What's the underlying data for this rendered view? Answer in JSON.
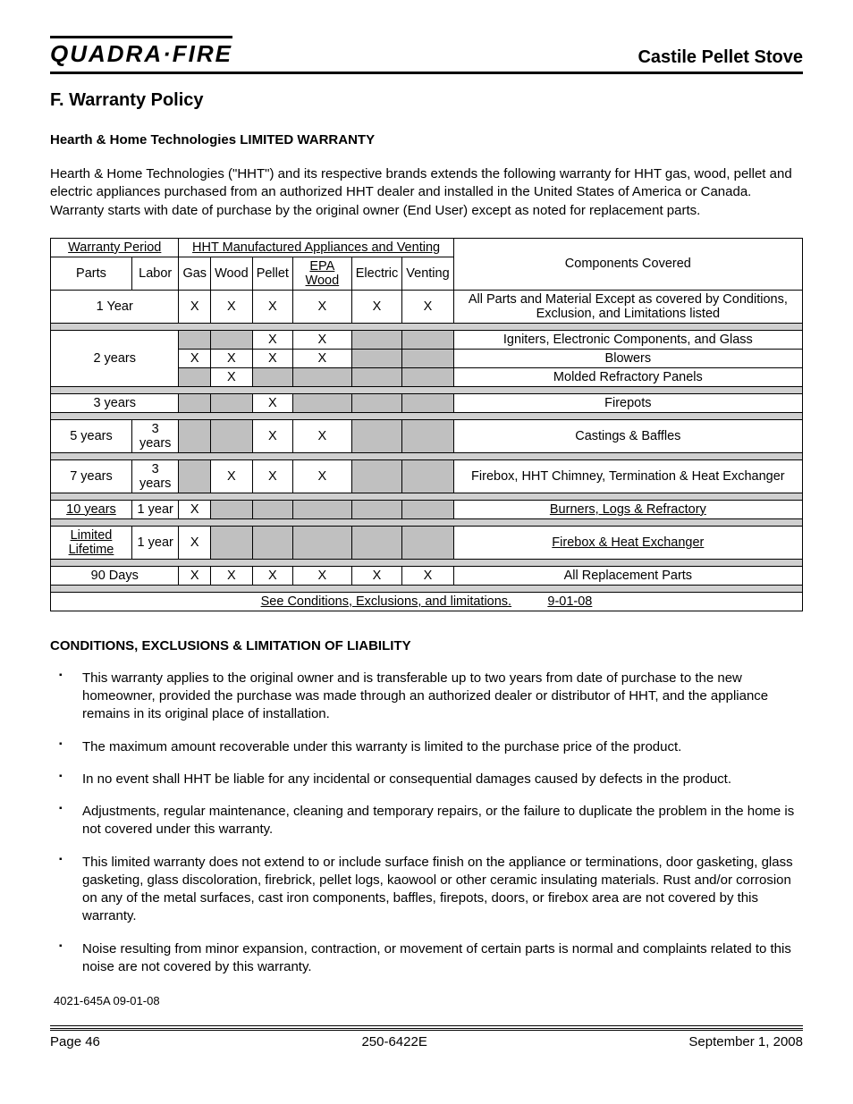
{
  "header": {
    "brand": "Quadra·Fire",
    "product": "Castile Pellet Stove"
  },
  "section_title": "F.  Warranty Policy",
  "subtitle": "Hearth & Home Technologies LIMITED WARRANTY",
  "intro": "Hearth & Home Technologies (\"HHT\") and its respective brands extends the following warranty for HHT gas, wood, pellet and electric appliances purchased from an authorized HHT dealer and installed in the United States of America or Canada.  Warranty starts with date of purchase by the original owner (End User) except as noted for replacement parts.",
  "table": {
    "group_headers": {
      "left": "Warranty Period",
      "mid": "HHT Manufactured Appliances and Venting",
      "right": "Components Covered"
    },
    "col_headers": [
      "Parts",
      "Labor",
      "Gas",
      "Wood",
      "Pellet",
      "EPA Wood",
      "Electric",
      "Venting"
    ],
    "rows": [
      {
        "parts": "1 Year",
        "labor": "",
        "merged_parts_labor": true,
        "gas": "X",
        "wood": "X",
        "pellet": "X",
        "epa": "X",
        "electric": "X",
        "venting": "X",
        "comp": "All Parts and Material Except as covered by Conditions, Exclusion, and Limitations listed",
        "comp_underline_last": true,
        "gray_cols": []
      },
      {
        "spacer": true
      },
      {
        "parts": "2 years",
        "labor": "",
        "merged_parts_labor": true,
        "rowspan": 3,
        "sub": [
          {
            "gas": "",
            "wood": "",
            "pellet": "X",
            "epa": "X",
            "electric": "",
            "venting": "",
            "comp": "Igniters, Electronic Components, and Glass",
            "gray": [
              "gas",
              "wood",
              "electric",
              "venting"
            ],
            "comp_underline_last": true
          },
          {
            "gas": "X",
            "wood": "X",
            "pellet": "X",
            "epa": "X",
            "electric": "",
            "venting": "",
            "comp": "Blowers",
            "gray": [
              "electric",
              "venting"
            ]
          },
          {
            "gas": "",
            "wood": "X",
            "pellet": "",
            "epa": "",
            "electric": "",
            "venting": "",
            "comp": "Molded Refractory Panels",
            "gray": [
              "gas",
              "pellet",
              "epa",
              "electric",
              "venting"
            ]
          }
        ]
      },
      {
        "spacer": true
      },
      {
        "parts": "3 years",
        "labor": "",
        "merged_parts_labor": true,
        "gas": "",
        "wood": "",
        "pellet": "X",
        "epa": "",
        "electric": "",
        "venting": "",
        "comp": "Firepots",
        "gray": [
          "gas",
          "wood",
          "epa",
          "electric",
          "venting"
        ]
      },
      {
        "spacer": true
      },
      {
        "parts": "5 years",
        "labor": "3 years",
        "gas": "",
        "wood": "",
        "pellet": "X",
        "epa": "X",
        "electric": "",
        "venting": "",
        "comp": "Castings & Baffles",
        "gray": [
          "gas",
          "wood",
          "electric",
          "venting"
        ]
      },
      {
        "spacer": true
      },
      {
        "parts": "7 years",
        "labor": "3 years",
        "gas": "",
        "wood": "X",
        "pellet": "X",
        "epa": "X",
        "electric": "",
        "venting": "",
        "comp": "Firebox, HHT Chimney, Termination & Heat Exchanger",
        "gray": [
          "gas",
          "electric",
          "venting"
        ],
        "comp_underline_last": true
      },
      {
        "spacer": true
      },
      {
        "parts": "10 years",
        "labor": "1 year",
        "parts_underline": true,
        "gas": "X",
        "wood": "",
        "pellet": "",
        "epa": "",
        "electric": "",
        "venting": "",
        "comp": "Burners, Logs & Refractory",
        "gray": [
          "wood",
          "pellet",
          "epa",
          "electric",
          "venting"
        ],
        "comp_underline": true
      },
      {
        "spacer": true
      },
      {
        "parts": "Limited Lifetime",
        "labor": "1 year",
        "parts_underline": true,
        "gas": "X",
        "wood": "",
        "pellet": "",
        "epa": "",
        "electric": "",
        "venting": "",
        "comp": "Firebox & Heat Exchanger",
        "gray": [
          "wood",
          "pellet",
          "epa",
          "electric",
          "venting"
        ],
        "comp_underline": true
      },
      {
        "spacer": true
      },
      {
        "parts": "90 Days",
        "labor": "",
        "merged_parts_labor": true,
        "gas": "X",
        "wood": "X",
        "pellet": "X",
        "epa": "X",
        "electric": "X",
        "venting": "X",
        "comp": "All Replacement Parts",
        "gray": []
      },
      {
        "spacer": true
      }
    ],
    "footer_text": "See Conditions, Exclusions, and limitations.",
    "footer_date": "9-01-08"
  },
  "conditions_title": "CONDITIONS, EXCLUSIONS & LIMITATION OF LIABILITY",
  "conditions": [
    "This warranty applies to the original owner and is transferable up to two years from date of purchase to the new homeowner, provided the purchase was made through an authorized dealer or distributor of HHT, and the appliance remains in its original place of installation.",
    "The maximum amount recoverable under this warranty is limited to the purchase price of the product.",
    "In no event shall HHT be liable for any incidental or consequential damages caused by defects in the product.",
    "Adjustments, regular maintenance, cleaning and temporary repairs, or the failure to duplicate the problem in the home is not covered under this warranty.",
    "This limited warranty does not extend to or include surface finish on the appliance or terminations, door gasketing, glass gasketing, glass discoloration, firebrick, pellet logs, kaowool or other ceramic insulating materials.  Rust and/or corrosion on any of the metal surfaces, cast iron components, baffles, firepots, doors, or firebox area are not covered by this warranty.",
    "Noise resulting from minor expansion, contraction, or movement of certain parts is normal and complaints related to this noise are not covered by this warranty."
  ],
  "docref": "4021-645A 09-01-08",
  "footer": {
    "left": "Page  46",
    "mid": "250-6422E",
    "right": "September 1,  2008"
  }
}
